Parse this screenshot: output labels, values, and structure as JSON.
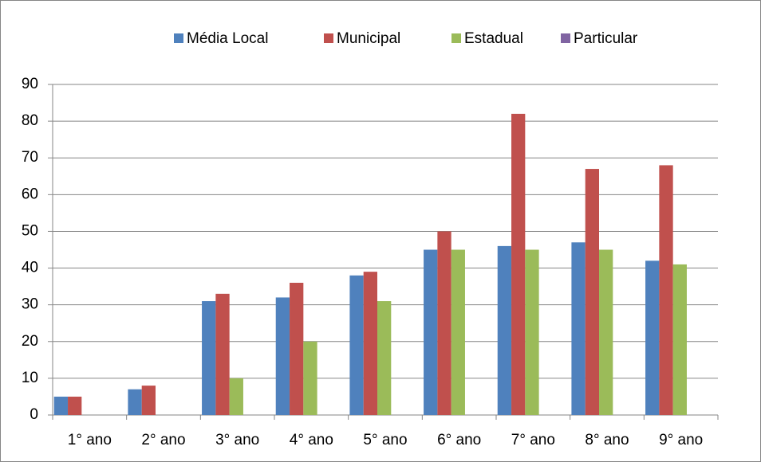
{
  "chart_data": {
    "type": "bar",
    "categories": [
      "1° ano",
      "2° ano",
      "3° ano",
      "4° ano",
      "5° ano",
      "6° ano",
      "7° ano",
      "8° ano",
      "9° ano"
    ],
    "series": [
      {
        "name": "Média Local",
        "color": "#4f81bd",
        "values": [
          5,
          7,
          31,
          32,
          38,
          45,
          46,
          47,
          42
        ]
      },
      {
        "name": "Municipal",
        "color": "#c0504d",
        "values": [
          5,
          8,
          33,
          36,
          39,
          50,
          82,
          67,
          68
        ]
      },
      {
        "name": "Estadual",
        "color": "#9bbb59",
        "values": [
          null,
          null,
          10,
          20,
          31,
          45,
          45,
          45,
          41
        ]
      },
      {
        "name": "Particular",
        "color": "#8064a2",
        "values": [
          null,
          null,
          null,
          null,
          null,
          null,
          null,
          null,
          null
        ]
      }
    ],
    "ylim": [
      0,
      90
    ],
    "yticks": [
      0,
      10,
      20,
      30,
      40,
      50,
      60,
      70,
      80,
      90
    ],
    "grid": true,
    "legend": "top"
  }
}
